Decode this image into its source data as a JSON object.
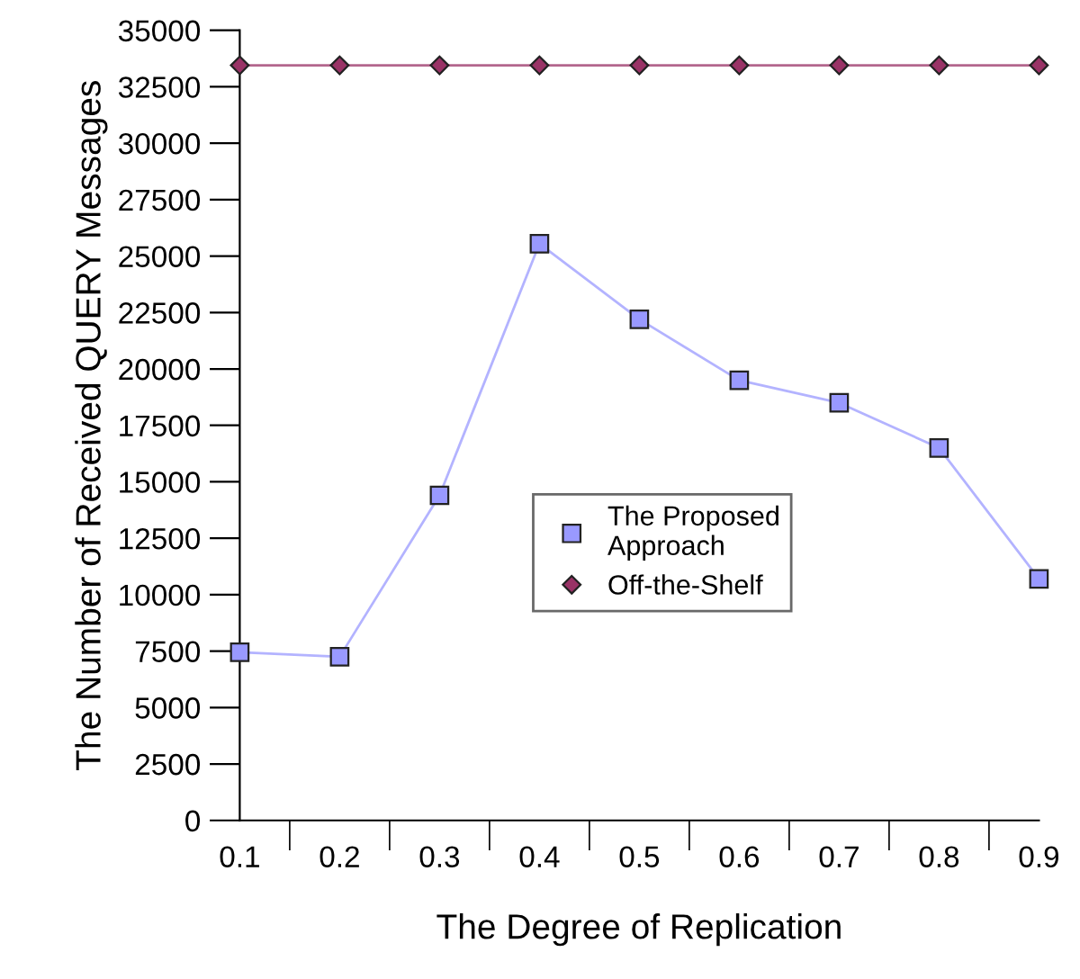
{
  "chart_data": {
    "type": "line",
    "xlabel": "The Degree of Replication",
    "ylabel": "The Number of Received QUERY Messages",
    "categories": [
      "0.1",
      "0.2",
      "0.3",
      "0.4",
      "0.5",
      "0.6",
      "0.7",
      "0.8",
      "0.9"
    ],
    "series": [
      {
        "name": "The Proposed\nApproach",
        "color": "#9999ff",
        "marker": "square",
        "values": [
          7450,
          7250,
          14400,
          25550,
          22200,
          19500,
          18500,
          16500,
          10700
        ]
      },
      {
        "name": "Off-the-Shelf",
        "color": "#993366",
        "marker": "diamond",
        "values": [
          33450,
          33450,
          33450,
          33450,
          33450,
          33450,
          33450,
          33450,
          33450
        ]
      }
    ],
    "ylim": [
      0,
      35000
    ],
    "yticks": [
      0,
      2500,
      5000,
      7500,
      10000,
      12500,
      15000,
      17500,
      20000,
      22500,
      25000,
      27500,
      30000,
      32500,
      35000
    ],
    "grid": false,
    "legend": "center",
    "line_style": "solid"
  }
}
